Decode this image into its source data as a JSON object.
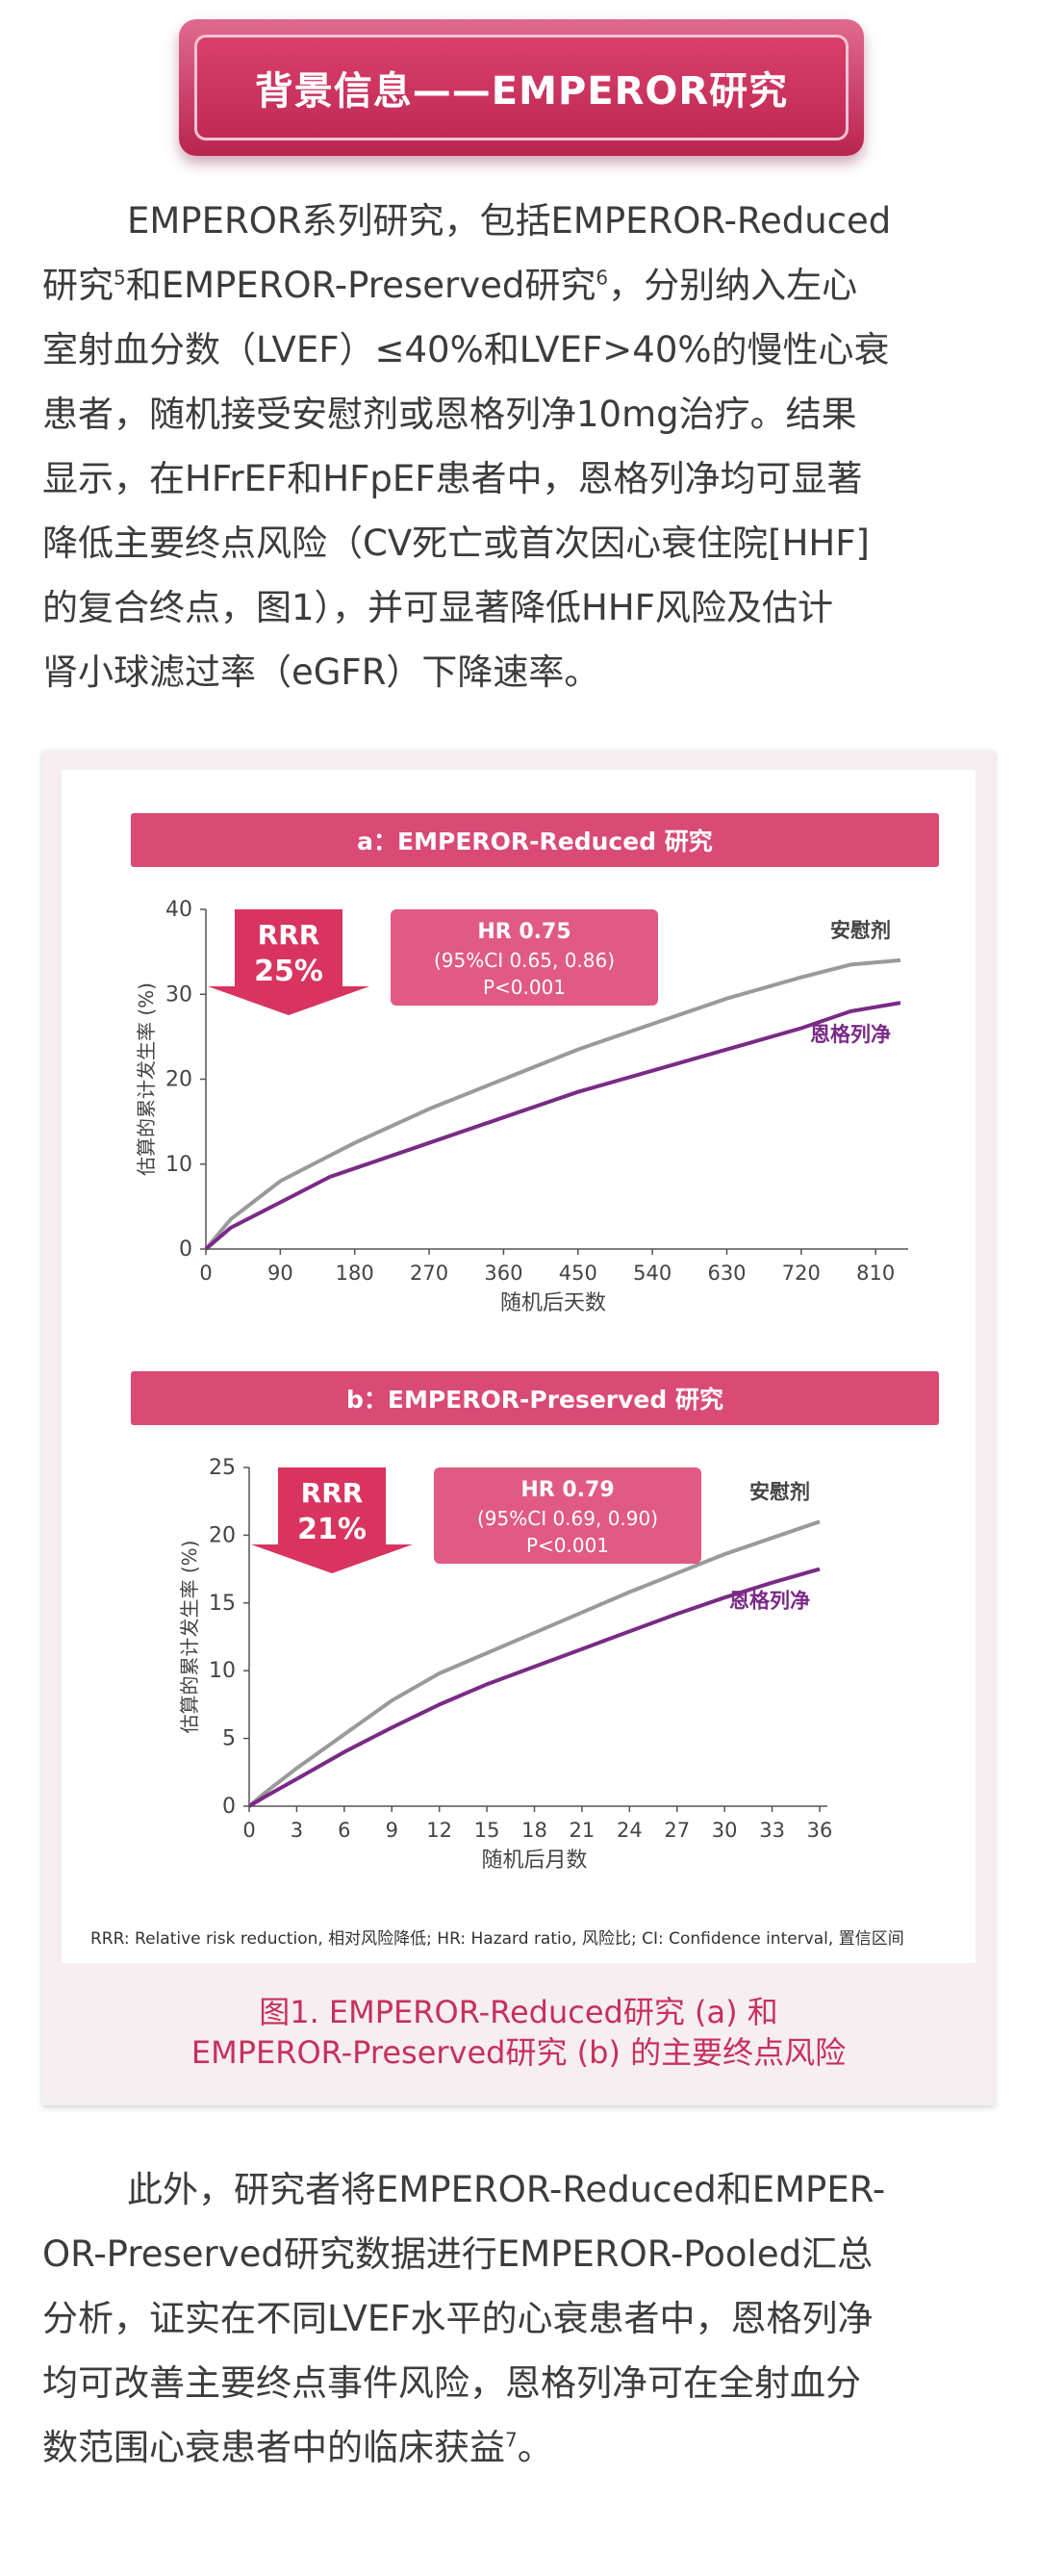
{
  "banner": {
    "title": "背景信息——EMPEROR研究"
  },
  "para1": {
    "l1": "EMPEROR系列研究，包括EMPEROR-Reduced",
    "l2a": "研究",
    "l2sup1": "5",
    "l2b": "和EMPEROR-Preserved研究",
    "l2sup2": "6",
    "l2c": "，分别纳入左心",
    "l3": "室射血分数（LVEF）≤40%和LVEF>40%的慢性心衰",
    "l4": "患者，随机接受安慰剂或恩格列净10mg治疗。结果",
    "l5": "显示，在HFrEF和HFpEF患者中，恩格列净均可显著",
    "l6": "降低主要终点风险（CV死亡或首次因心衰住院[HHF]",
    "l7": "的复合终点，图1），并可显著降低HHF风险及估计",
    "l8": "肾小球滤过率（eGFR）下降速率。"
  },
  "figure": {
    "panel_a_title": "a：EMPEROR-Reduced 研究",
    "panel_b_title": "b：EMPEROR-Preserved 研究",
    "footnote": "RRR: Relative risk reduction, 相对风险降低; HR: Hazard ratio, 风险比; CI: Confidence interval, 置信区间",
    "caption_l1": "图1. EMPEROR-Reduced研究 (a) 和",
    "caption_l2": "EMPEROR-Preserved研究 (b) 的主要终点风险"
  },
  "chart_data": [
    {
      "type": "line",
      "title": "a：EMPEROR-Reduced 研究",
      "xlabel": "随机后天数",
      "ylabel": "估算的累计发生率 (%)",
      "xlim": [
        0,
        840
      ],
      "ylim": [
        0,
        40
      ],
      "xticks": [
        0,
        90,
        180,
        270,
        360,
        450,
        540,
        630,
        720,
        810
      ],
      "yticks": [
        0,
        10,
        20,
        30,
        40
      ],
      "rrr_label": "RRR",
      "rrr_value": "25%",
      "hr_title": "HR 0.75",
      "hr_ci": "(95%CI 0.65, 0.86)",
      "hr_p": "P<0.001",
      "series": [
        {
          "name": "安慰剂",
          "color": "#9a9a9a",
          "x": [
            0,
            30,
            90,
            150,
            180,
            270,
            360,
            450,
            540,
            630,
            720,
            780,
            840
          ],
          "y": [
            0,
            3.5,
            8,
            11,
            12.5,
            16.5,
            20,
            23.5,
            26.5,
            29.5,
            32,
            33.5,
            34
          ]
        },
        {
          "name": "恩格列净",
          "color": "#7a2a86",
          "x": [
            0,
            30,
            90,
            150,
            180,
            270,
            360,
            450,
            540,
            630,
            720,
            780,
            840
          ],
          "y": [
            0,
            2.5,
            5.5,
            8.5,
            9.5,
            12.5,
            15.5,
            18.5,
            21,
            23.5,
            26,
            28,
            29
          ]
        }
      ]
    },
    {
      "type": "line",
      "title": "b：EMPEROR-Preserved 研究",
      "xlabel": "随机后月数",
      "ylabel": "估算的累计发生率 (%)",
      "xlim": [
        0,
        36
      ],
      "ylim": [
        0,
        25
      ],
      "xticks": [
        0,
        3,
        6,
        9,
        12,
        15,
        18,
        21,
        24,
        27,
        30,
        33,
        36
      ],
      "yticks": [
        0,
        5,
        10,
        15,
        20,
        25
      ],
      "rrr_label": "RRR",
      "rrr_value": "21%",
      "hr_title": "HR 0.79",
      "hr_ci": "(95%CI 0.69, 0.90)",
      "hr_p": "P<0.001",
      "series": [
        {
          "name": "安慰剂",
          "color": "#9a9a9a",
          "x": [
            0,
            1,
            3,
            6,
            9,
            12,
            15,
            18,
            21,
            24,
            27,
            30,
            33,
            36
          ],
          "y": [
            0,
            1,
            2.8,
            5.3,
            7.8,
            9.8,
            11.3,
            12.8,
            14.3,
            15.8,
            17.2,
            18.6,
            19.8,
            21
          ]
        },
        {
          "name": "恩格列净",
          "color": "#7a2a86",
          "x": [
            0,
            1,
            3,
            6,
            9,
            12,
            15,
            18,
            21,
            24,
            27,
            30,
            33,
            36
          ],
          "y": [
            0,
            0.7,
            2,
            4,
            5.8,
            7.5,
            9,
            10.3,
            11.6,
            12.9,
            14.2,
            15.4,
            16.5,
            17.5
          ]
        }
      ]
    }
  ],
  "para2": {
    "l1": "此外，研究者将EMPEROR-Reduced和EMPER-",
    "l2": "OR-Preserved研究数据进行EMPEROR-Pooled汇总",
    "l3": "分析，证实在不同LVEF水平的心衰患者中，恩格列净",
    "l4": "均可改善主要终点事件风险，恩格列净可在全射血分",
    "l5a": "数范围心衰患者中的临床获益",
    "l5sup": "7",
    "l5b": "。"
  }
}
